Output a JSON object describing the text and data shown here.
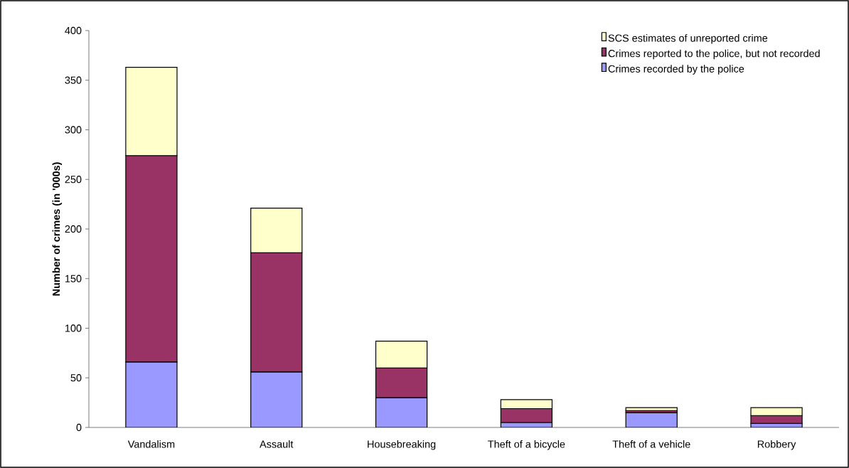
{
  "chart_data": {
    "type": "bar",
    "stacked": true,
    "ylabel": "Number of crimes (in '000s)",
    "categories": [
      "Vandalism",
      "Assault",
      "Housebreaking",
      "Theft of a bicycle",
      "Theft of a vehicle",
      "Robbery"
    ],
    "series": [
      {
        "name": "Crimes recorded by the police",
        "color": "#9999ff",
        "values": [
          66,
          56,
          30,
          5,
          15,
          4
        ]
      },
      {
        "name": "Crimes reported to the police, but not recorded",
        "color": "#993366",
        "values": [
          208,
          120,
          30,
          14,
          2,
          8
        ]
      },
      {
        "name": "SCS estimates of unreported crime",
        "color": "#ffffcc",
        "values": [
          89,
          45,
          27,
          9,
          3,
          8
        ]
      }
    ],
    "ylim": [
      0,
      400
    ],
    "yticks": [
      0,
      50,
      100,
      150,
      200,
      250,
      300,
      350,
      400
    ],
    "legend": "top right"
  }
}
